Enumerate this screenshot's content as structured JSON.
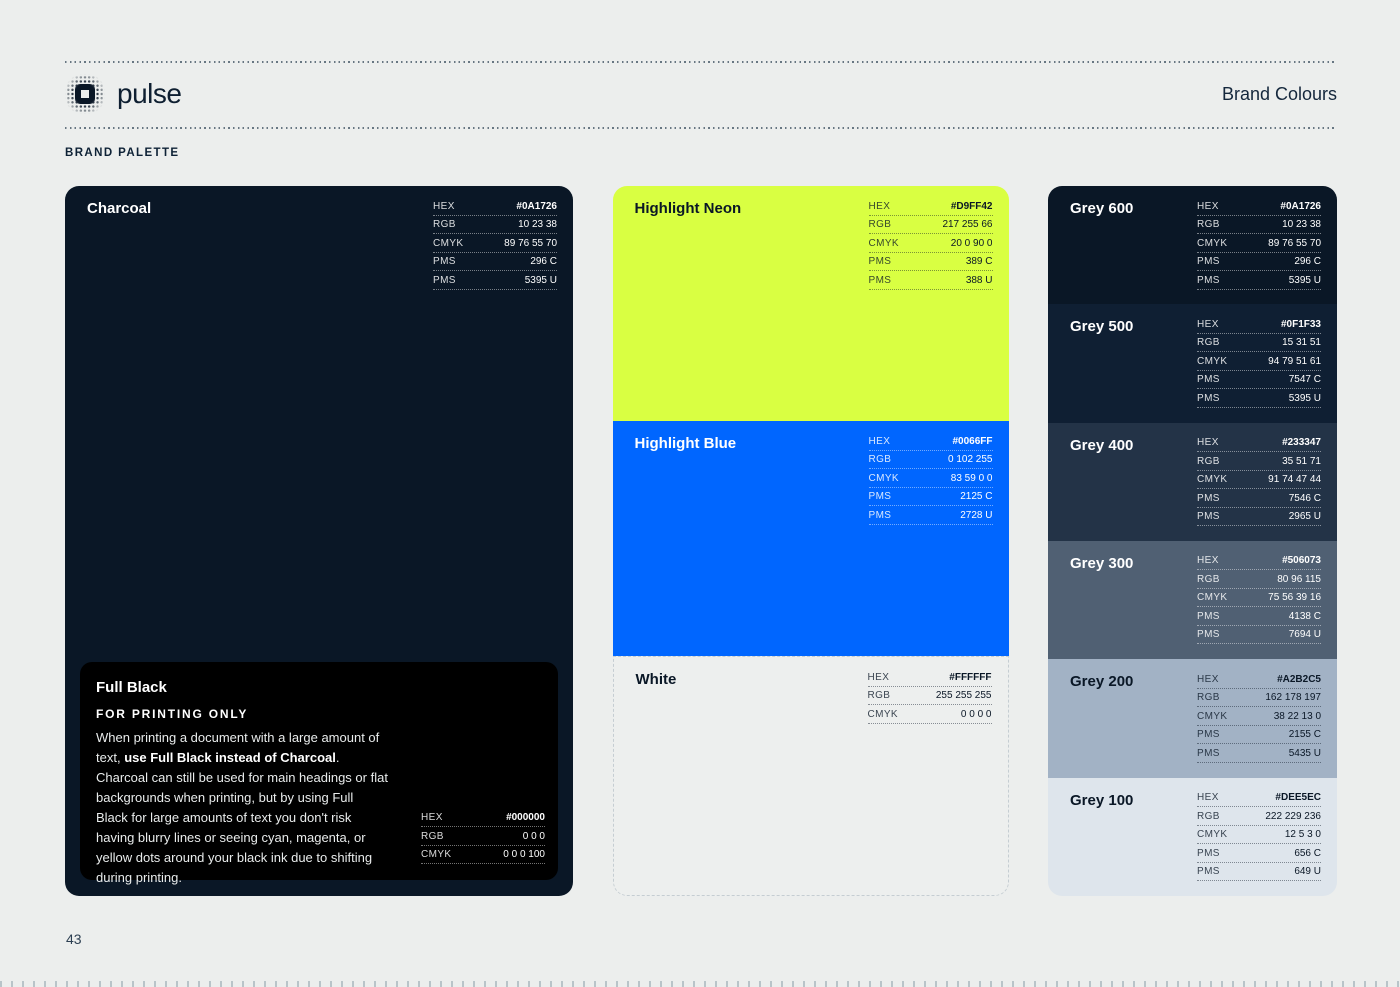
{
  "header": {
    "logo_text": "pulse",
    "page_title": "Brand Colours",
    "section_label": "BRAND PALETTE"
  },
  "footer": {
    "page_number": "43"
  },
  "colors": {
    "charcoal": "#0A1726",
    "full_black": "#000000",
    "highlight_neon": "#D9FF42",
    "highlight_blue": "#0066FF",
    "white": "#FFFFFF",
    "grey_600": "#0A1726",
    "grey_500": "#0F1F33",
    "grey_400": "#233347",
    "grey_300": "#506073",
    "grey_200": "#A2B2C5",
    "grey_100": "#DEE5EC",
    "page_background": "#ECEEED"
  },
  "charcoal_card": {
    "name": "Charcoal",
    "specs": [
      {
        "label": "HEX",
        "value": "#0A1726"
      },
      {
        "label": "RGB",
        "value": "10 23 38"
      },
      {
        "label": "CMYK",
        "value": "89 76 55 70"
      },
      {
        "label": "PMS",
        "value": "296 C"
      },
      {
        "label": "PMS",
        "value": "5395 U"
      }
    ],
    "full_black": {
      "name": "Full Black",
      "subtitle": "FOR PRINTING ONLY",
      "body_before_bold": "When printing a document with a large amount of text, ",
      "body_bold": "use Full Black instead of Charcoal",
      "body_after_bold": ". Charcoal can still be used for main headings or flat backgrounds when printing, but by using Full Black for large amounts of text you don't risk having blurry lines or seeing cyan, magenta, or yellow dots around your black ink due to shifting during printing.",
      "specs": [
        {
          "label": "HEX",
          "value": "#000000"
        },
        {
          "label": "RGB",
          "value": "0 0 0"
        },
        {
          "label": "CMYK",
          "value": "0 0 0 100"
        }
      ]
    }
  },
  "highlight_cards": [
    {
      "name": "Highlight Neon",
      "specs": [
        {
          "label": "HEX",
          "value": "#D9FF42"
        },
        {
          "label": "RGB",
          "value": "217 255 66"
        },
        {
          "label": "CMYK",
          "value": "20 0 90 0"
        },
        {
          "label": "PMS",
          "value": "389 C"
        },
        {
          "label": "PMS",
          "value": "388 U"
        }
      ]
    },
    {
      "name": "Highlight Blue",
      "specs": [
        {
          "label": "HEX",
          "value": "#0066FF"
        },
        {
          "label": "RGB",
          "value": "0 102 255"
        },
        {
          "label": "CMYK",
          "value": "83 59 0 0"
        },
        {
          "label": "PMS",
          "value": "2125 C"
        },
        {
          "label": "PMS",
          "value": "2728 U"
        }
      ]
    },
    {
      "name": "White",
      "specs": [
        {
          "label": "HEX",
          "value": "#FFFFFF"
        },
        {
          "label": "RGB",
          "value": "255 255 255"
        },
        {
          "label": "CMYK",
          "value": "0 0 0 0"
        }
      ]
    }
  ],
  "grey_cards": [
    {
      "name": "Grey 600",
      "specs": [
        {
          "label": "HEX",
          "value": "#0A1726"
        },
        {
          "label": "RGB",
          "value": "10 23 38"
        },
        {
          "label": "CMYK",
          "value": "89 76 55 70"
        },
        {
          "label": "PMS",
          "value": "296 C"
        },
        {
          "label": "PMS",
          "value": "5395 U"
        }
      ]
    },
    {
      "name": "Grey 500",
      "specs": [
        {
          "label": "HEX",
          "value": "#0F1F33"
        },
        {
          "label": "RGB",
          "value": "15 31 51"
        },
        {
          "label": "CMYK",
          "value": "94 79 51 61"
        },
        {
          "label": "PMS",
          "value": "7547 C"
        },
        {
          "label": "PMS",
          "value": "5395 U"
        }
      ]
    },
    {
      "name": "Grey 400",
      "specs": [
        {
          "label": "HEX",
          "value": "#233347"
        },
        {
          "label": "RGB",
          "value": "35 51 71"
        },
        {
          "label": "CMYK",
          "value": "91 74 47 44"
        },
        {
          "label": "PMS",
          "value": "7546 C"
        },
        {
          "label": "PMS",
          "value": "2965 U"
        }
      ]
    },
    {
      "name": "Grey 300",
      "specs": [
        {
          "label": "HEX",
          "value": "#506073"
        },
        {
          "label": "RGB",
          "value": "80 96 115"
        },
        {
          "label": "CMYK",
          "value": "75 56 39 16"
        },
        {
          "label": "PMS",
          "value": "4138 C"
        },
        {
          "label": "PMS",
          "value": "7694 U"
        }
      ]
    },
    {
      "name": "Grey 200",
      "specs": [
        {
          "label": "HEX",
          "value": "#A2B2C5"
        },
        {
          "label": "RGB",
          "value": "162 178 197"
        },
        {
          "label": "CMYK",
          "value": "38 22 13 0"
        },
        {
          "label": "PMS",
          "value": "2155 C"
        },
        {
          "label": "PMS",
          "value": "5435 U"
        }
      ]
    },
    {
      "name": "Grey 100",
      "specs": [
        {
          "label": "HEX",
          "value": "#DEE5EC"
        },
        {
          "label": "RGB",
          "value": "222 229 236"
        },
        {
          "label": "CMYK",
          "value": "12 5 3 0"
        },
        {
          "label": "PMS",
          "value": "656 C"
        },
        {
          "label": "PMS",
          "value": "649 U"
        }
      ]
    }
  ]
}
